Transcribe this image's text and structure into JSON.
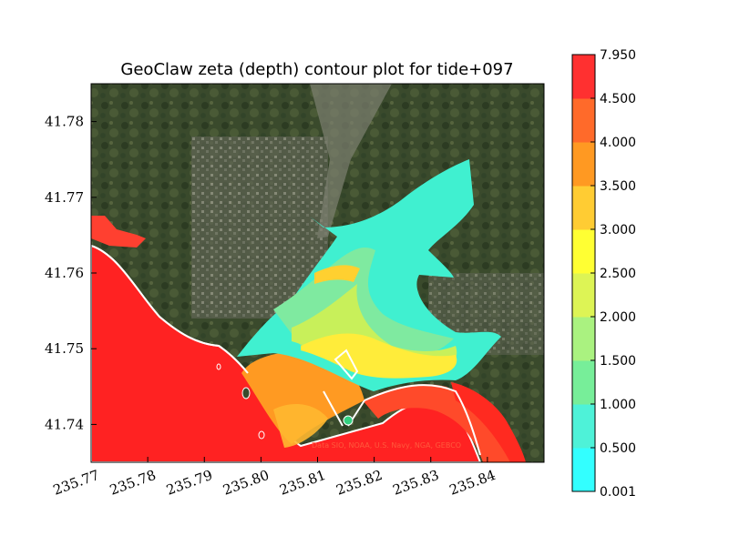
{
  "chart_data": {
    "type": "heatmap",
    "title": "GeoClaw zeta (depth) contour plot for tide+097",
    "xlabel": "",
    "ylabel": "",
    "x_ticks": [
      "235.77",
      "235.78",
      "235.79",
      "235.80",
      "235.81",
      "235.82",
      "235.83",
      "235.84"
    ],
    "y_ticks": [
      "41.78",
      "41.77",
      "41.76",
      "41.75",
      "41.74"
    ],
    "xlim": [
      235.77,
      235.85
    ],
    "ylim": [
      41.735,
      41.785
    ],
    "colorbar": {
      "levels": [
        "0.001",
        "0.500",
        "1.000",
        "1.500",
        "2.000",
        "2.500",
        "3.000",
        "3.500",
        "4.000",
        "4.500",
        "7.950"
      ],
      "colors": [
        "#33ffff",
        "#4ef2d8",
        "#77ee99",
        "#aaf280",
        "#ddf455",
        "#ffff33",
        "#ffcc33",
        "#ff9922",
        "#ff6a2a",
        "#ff3030"
      ]
    },
    "attribution": "Data SIO, NOAA, U.S. Navy, NGA, GEBCO",
    "grid": false,
    "legend": "colorbar-right"
  }
}
